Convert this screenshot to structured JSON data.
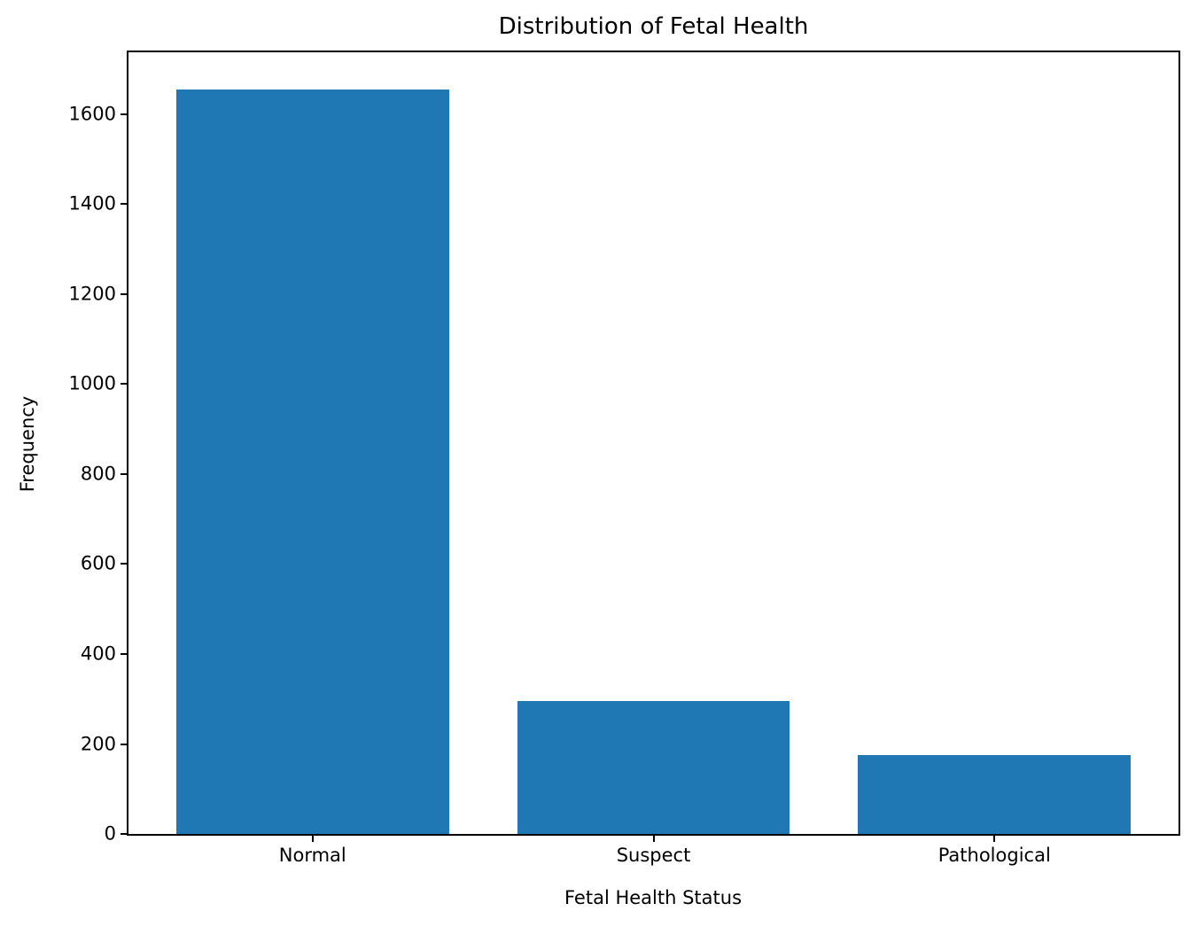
{
  "chart_data": {
    "type": "bar",
    "title": "Distribution of Fetal Health",
    "xlabel": "Fetal Health Status",
    "ylabel": "Frequency",
    "categories": [
      "Normal",
      "Suspect",
      "Pathological"
    ],
    "values": [
      1655,
      295,
      176
    ],
    "x_positions": [
      0,
      1,
      2
    ],
    "bar_width": 0.8,
    "bar_color": "#1f77b4",
    "xlim": [
      -0.54,
      2.54
    ],
    "ylim": [
      0,
      1737.75
    ],
    "yticks": [
      0,
      200,
      400,
      600,
      800,
      1000,
      1200,
      1400,
      1600
    ],
    "grid": false,
    "legend": null,
    "spines": "box",
    "text_color": "#000000",
    "background_color": "#ffffff"
  }
}
